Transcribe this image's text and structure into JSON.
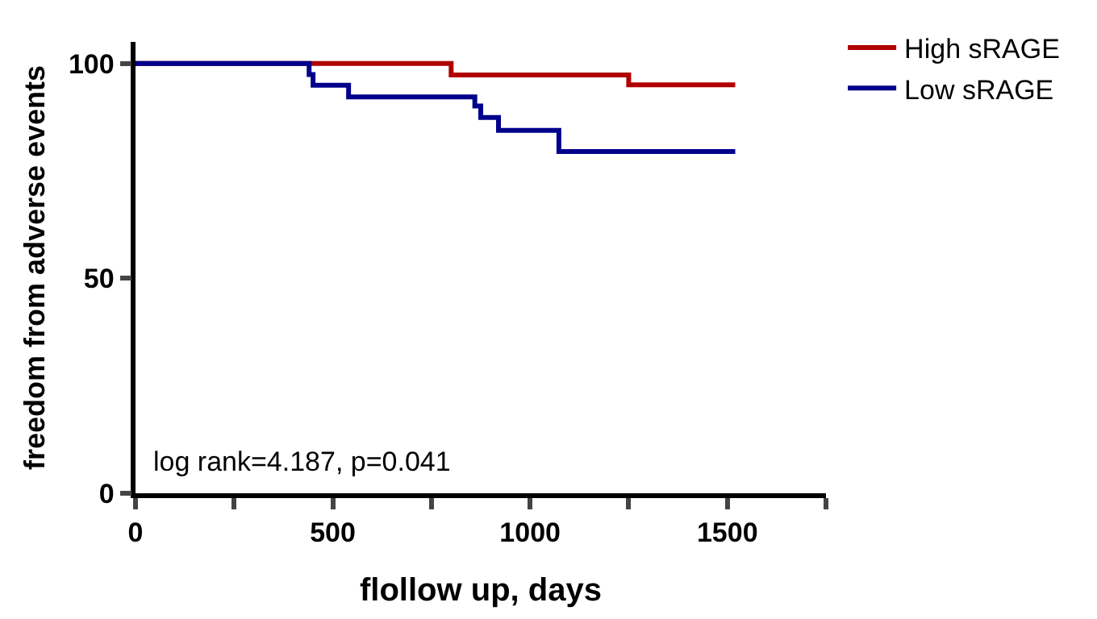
{
  "chart_data": {
    "type": "step",
    "xlabel": "flollow up, days",
    "ylabel": "freedom from adverse events",
    "series": [
      {
        "name": "High sRAGE",
        "color": "#b00000",
        "x": [
          0,
          800,
          1250,
          1520
        ],
        "values": [
          100,
          97.3,
          95,
          95
        ]
      },
      {
        "name": "Low sRAGE",
        "color": "#00008b",
        "x": [
          0,
          440,
          450,
          540,
          860,
          875,
          920,
          1073,
          1520
        ],
        "values": [
          100,
          97.4,
          94.9,
          92.2,
          90.1,
          87.4,
          84.4,
          79.5,
          79.5
        ]
      }
    ],
    "xlim": [
      0,
      1750
    ],
    "xticks": [
      0,
      {
        "value": 250,
        "label": null
      },
      500,
      {
        "value": 750,
        "label": null
      },
      1000,
      {
        "value": 1250,
        "label": null
      },
      1500,
      {
        "value": 1750,
        "label": null
      }
    ],
    "ylim": [
      0,
      105
    ],
    "yticks": [
      0,
      50,
      100
    ],
    "grid": false,
    "legend": "top right",
    "annotations": [
      "log rank=4.187, p=0.041"
    ]
  }
}
